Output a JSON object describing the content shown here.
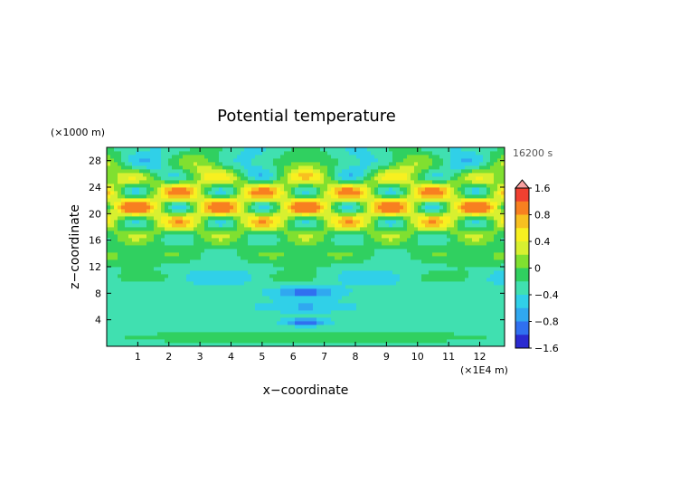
{
  "chart_data": {
    "type": "heatmap",
    "title": "Potential temperature",
    "xlabel": "x−coordinate",
    "ylabel": "z−coordinate",
    "x_unit": "(×1E4 m)",
    "y_unit": "(×1000 m)",
    "time_label": "16200 s",
    "xlim": [
      0,
      12.8
    ],
    "ylim": [
      0,
      30
    ],
    "x_ticks": [
      "1",
      "2",
      "3",
      "4",
      "5",
      "6",
      "7",
      "8",
      "9",
      "10",
      "11",
      "12"
    ],
    "y_ticks": [
      "4",
      "8",
      "12",
      "16",
      "20",
      "24",
      "28"
    ],
    "colorbar": {
      "labels": [
        "1.6",
        "0.8",
        "0.4",
        "0",
        "−0.4",
        "−0.8",
        "−1.6"
      ],
      "levels": [
        {
          "min": -2.0,
          "max": -1.6,
          "color": "#9030d0"
        },
        {
          "min": -1.6,
          "max": -1.2,
          "color": "#2a2ad0"
        },
        {
          "min": -1.2,
          "max": -0.8,
          "color": "#3070f0"
        },
        {
          "min": -0.8,
          "max": -0.6,
          "color": "#30a8f0"
        },
        {
          "min": -0.6,
          "max": -0.4,
          "color": "#30d0e8"
        },
        {
          "min": -0.4,
          "max": -0.2,
          "color": "#40e0b0"
        },
        {
          "min": -0.2,
          "max": 0.0,
          "color": "#30d060"
        },
        {
          "min": 0.0,
          "max": 0.2,
          "color": "#80e030"
        },
        {
          "min": 0.2,
          "max": 0.4,
          "color": "#d8f030"
        },
        {
          "min": 0.4,
          "max": 0.6,
          "color": "#f8f020"
        },
        {
          "min": 0.6,
          "max": 0.8,
          "color": "#f8c020"
        },
        {
          "min": 0.8,
          "max": 1.2,
          "color": "#f88020"
        },
        {
          "min": 1.2,
          "max": 1.6,
          "color": "#f04030"
        },
        {
          "min": 1.6,
          "max": 2.0,
          "color": "#f02030"
        }
      ]
    }
  }
}
